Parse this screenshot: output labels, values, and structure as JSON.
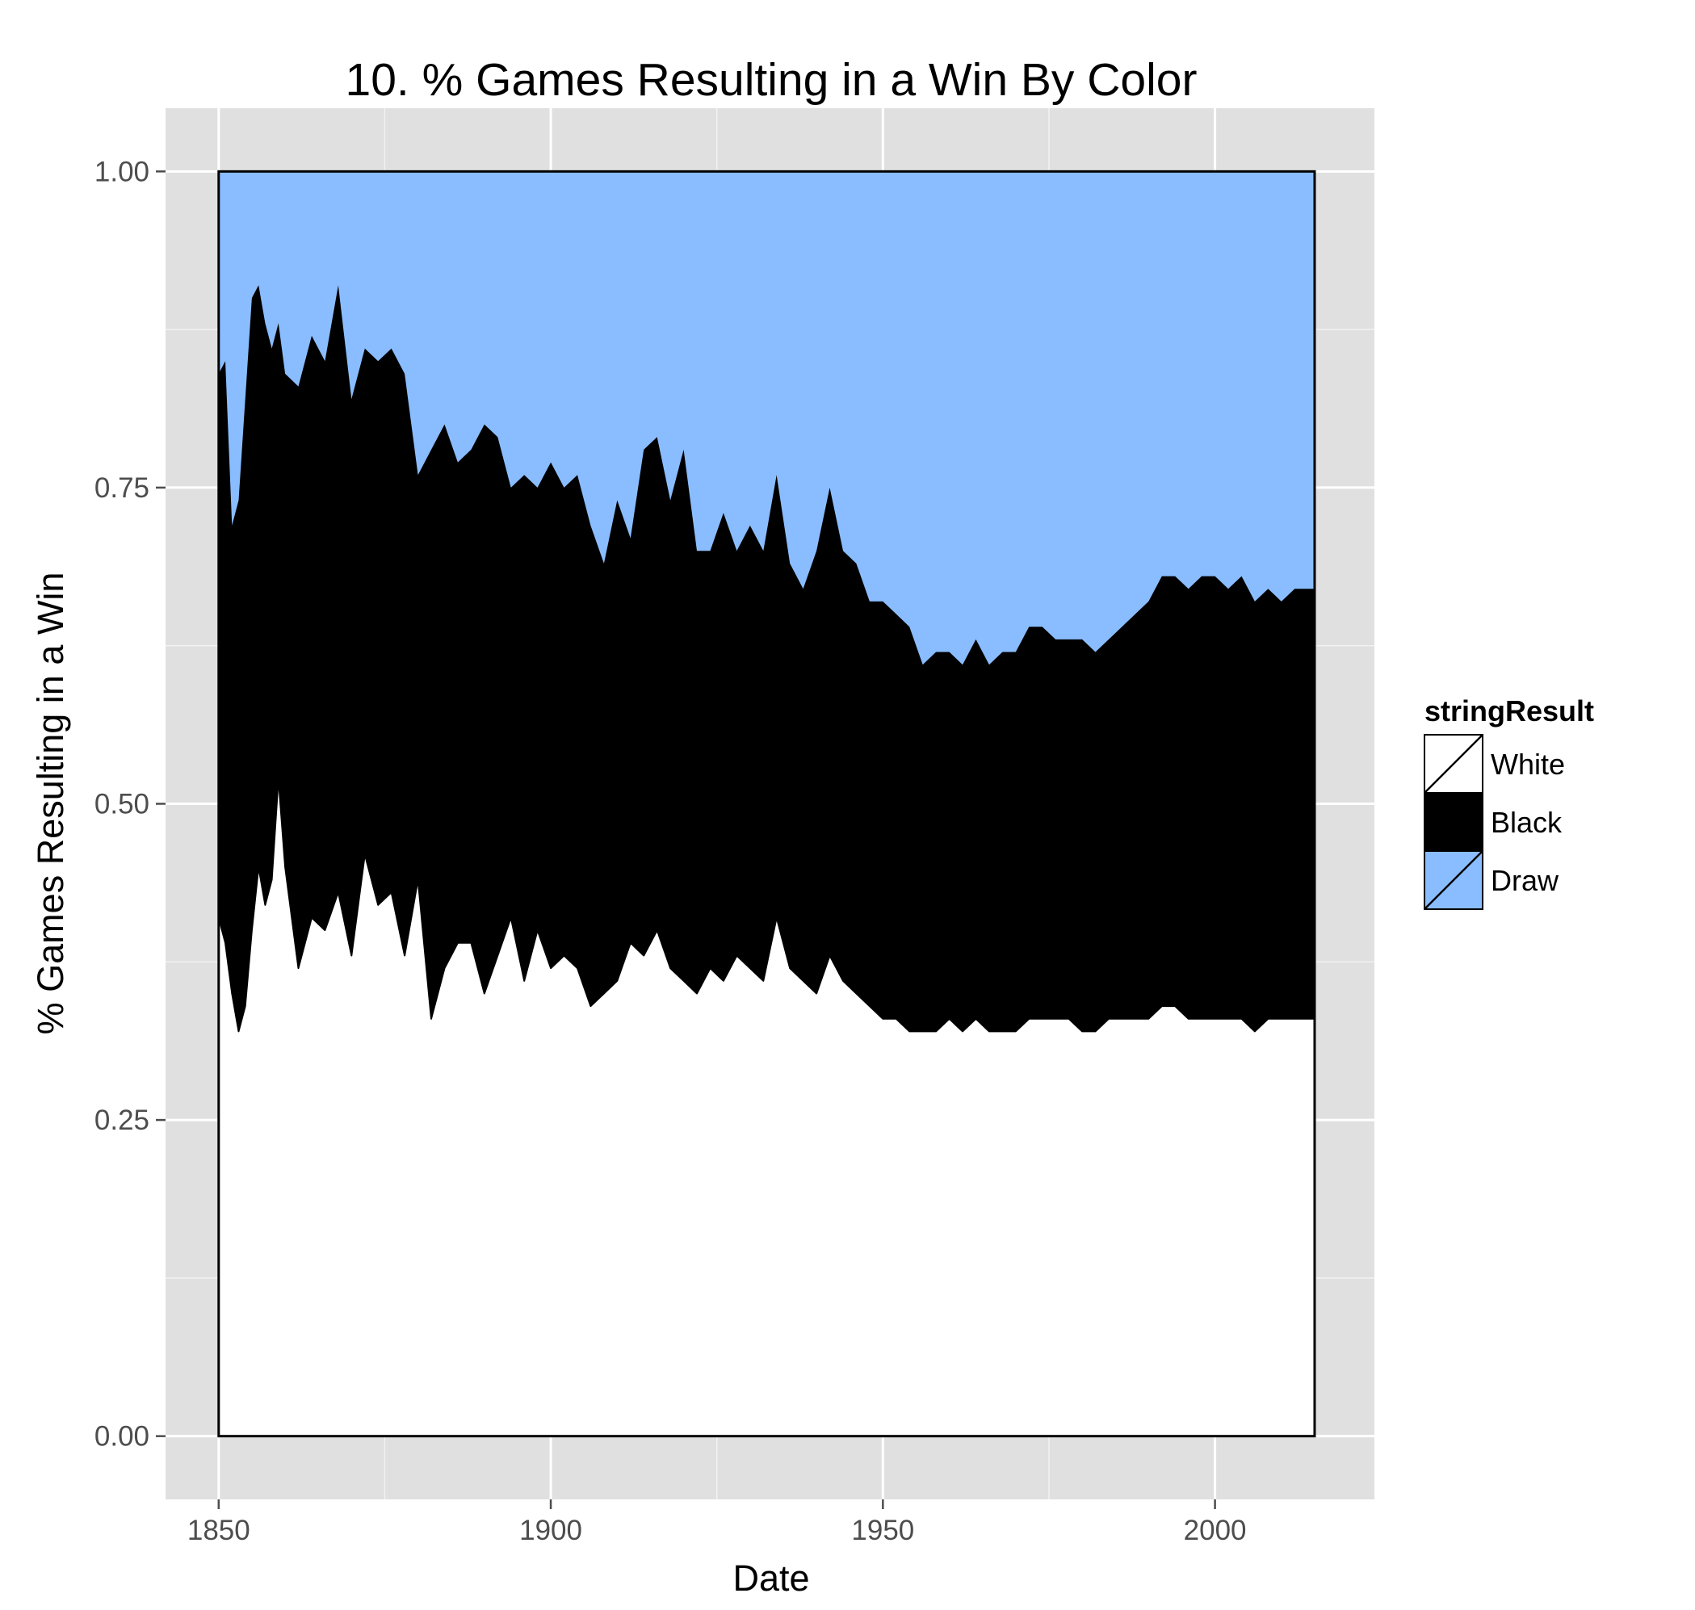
{
  "chart_data": {
    "type": "area",
    "stacked": true,
    "normalized": true,
    "title": "10. % Games Resulting in a Win By Color",
    "xlabel": "Date",
    "ylabel": "% Games Resulting in a Win",
    "xlim": [
      1842,
      2024
    ],
    "ylim": [
      -0.05,
      1.05
    ],
    "x_ticks": [
      1850,
      1900,
      1950,
      2000
    ],
    "x_tick_labels": [
      "1850",
      "1900",
      "1950",
      "2000"
    ],
    "y_ticks": [
      0,
      0.25,
      0.5,
      0.75,
      1
    ],
    "y_tick_labels": [
      "0.00",
      "0.25",
      "0.50",
      "0.75",
      "1.00"
    ],
    "grid": true,
    "panel_background": "#e0e0e0",
    "legend": {
      "title": "stringResult",
      "placement": "right",
      "entries": [
        {
          "label": "White",
          "color": "#ffffff"
        },
        {
          "label": "Black",
          "color": "#000000"
        },
        {
          "label": "Draw",
          "color": "#8abdff"
        }
      ]
    },
    "series_colors": {
      "White": "#ffffff",
      "Black": "#000000",
      "Draw": "#8abdff"
    },
    "x": [
      1850,
      1851,
      1852,
      1853,
      1854,
      1855,
      1856,
      1857,
      1858,
      1859,
      1860,
      1862,
      1864,
      1866,
      1868,
      1870,
      1872,
      1874,
      1876,
      1878,
      1880,
      1882,
      1884,
      1886,
      1888,
      1890,
      1892,
      1894,
      1896,
      1898,
      1900,
      1902,
      1904,
      1906,
      1908,
      1910,
      1912,
      1914,
      1916,
      1918,
      1920,
      1922,
      1924,
      1926,
      1928,
      1930,
      1932,
      1934,
      1936,
      1938,
      1940,
      1942,
      1944,
      1946,
      1948,
      1950,
      1952,
      1954,
      1956,
      1958,
      1960,
      1962,
      1964,
      1966,
      1968,
      1970,
      1972,
      1974,
      1976,
      1978,
      1980,
      1982,
      1984,
      1986,
      1988,
      1990,
      1992,
      1994,
      1996,
      1998,
      2000,
      2002,
      2004,
      2006,
      2008,
      2010,
      2012,
      2015
    ],
    "cumulative_top": {
      "White": [
        0.41,
        0.39,
        0.35,
        0.32,
        0.34,
        0.4,
        0.45,
        0.42,
        0.44,
        0.52,
        0.45,
        0.37,
        0.41,
        0.4,
        0.43,
        0.38,
        0.46,
        0.42,
        0.43,
        0.38,
        0.44,
        0.33,
        0.37,
        0.39,
        0.39,
        0.35,
        0.38,
        0.41,
        0.36,
        0.4,
        0.37,
        0.38,
        0.37,
        0.34,
        0.35,
        0.36,
        0.39,
        0.38,
        0.4,
        0.37,
        0.36,
        0.35,
        0.37,
        0.36,
        0.38,
        0.37,
        0.36,
        0.41,
        0.37,
        0.36,
        0.35,
        0.38,
        0.36,
        0.35,
        0.34,
        0.33,
        0.33,
        0.32,
        0.32,
        0.32,
        0.33,
        0.32,
        0.33,
        0.32,
        0.32,
        0.32,
        0.33,
        0.33,
        0.33,
        0.33,
        0.32,
        0.32,
        0.33,
        0.33,
        0.33,
        0.33,
        0.34,
        0.34,
        0.33,
        0.33,
        0.33,
        0.33,
        0.33,
        0.32,
        0.33,
        0.33,
        0.33,
        0.33
      ],
      "Black": [
        0.84,
        0.85,
        0.72,
        0.74,
        0.82,
        0.9,
        0.91,
        0.88,
        0.86,
        0.88,
        0.84,
        0.83,
        0.87,
        0.85,
        0.91,
        0.82,
        0.86,
        0.85,
        0.86,
        0.84,
        0.76,
        0.78,
        0.8,
        0.77,
        0.78,
        0.8,
        0.79,
        0.75,
        0.76,
        0.75,
        0.77,
        0.75,
        0.76,
        0.72,
        0.69,
        0.74,
        0.71,
        0.78,
        0.79,
        0.74,
        0.78,
        0.7,
        0.7,
        0.73,
        0.7,
        0.72,
        0.7,
        0.76,
        0.69,
        0.67,
        0.7,
        0.75,
        0.7,
        0.69,
        0.66,
        0.66,
        0.65,
        0.64,
        0.61,
        0.62,
        0.62,
        0.61,
        0.63,
        0.61,
        0.62,
        0.62,
        0.64,
        0.64,
        0.63,
        0.63,
        0.63,
        0.62,
        0.63,
        0.64,
        0.65,
        0.66,
        0.68,
        0.68,
        0.67,
        0.68,
        0.68,
        0.67,
        0.68,
        0.66,
        0.67,
        0.66,
        0.67,
        0.67
      ],
      "Draw": [
        1,
        1,
        1,
        1,
        1,
        1,
        1,
        1,
        1,
        1,
        1,
        1,
        1,
        1,
        1,
        1,
        1,
        1,
        1,
        1,
        1,
        1,
        1,
        1,
        1,
        1,
        1,
        1,
        1,
        1,
        1,
        1,
        1,
        1,
        1,
        1,
        1,
        1,
        1,
        1,
        1,
        1,
        1,
        1,
        1,
        1,
        1,
        1,
        1,
        1,
        1,
        1,
        1,
        1,
        1,
        1,
        1,
        1,
        1,
        1,
        1,
        1,
        1,
        1,
        1,
        1,
        1,
        1,
        1,
        1,
        1,
        1,
        1,
        1,
        1,
        1,
        1,
        1,
        1,
        1,
        1,
        1,
        1,
        1,
        1,
        1,
        1,
        1
      ]
    }
  }
}
